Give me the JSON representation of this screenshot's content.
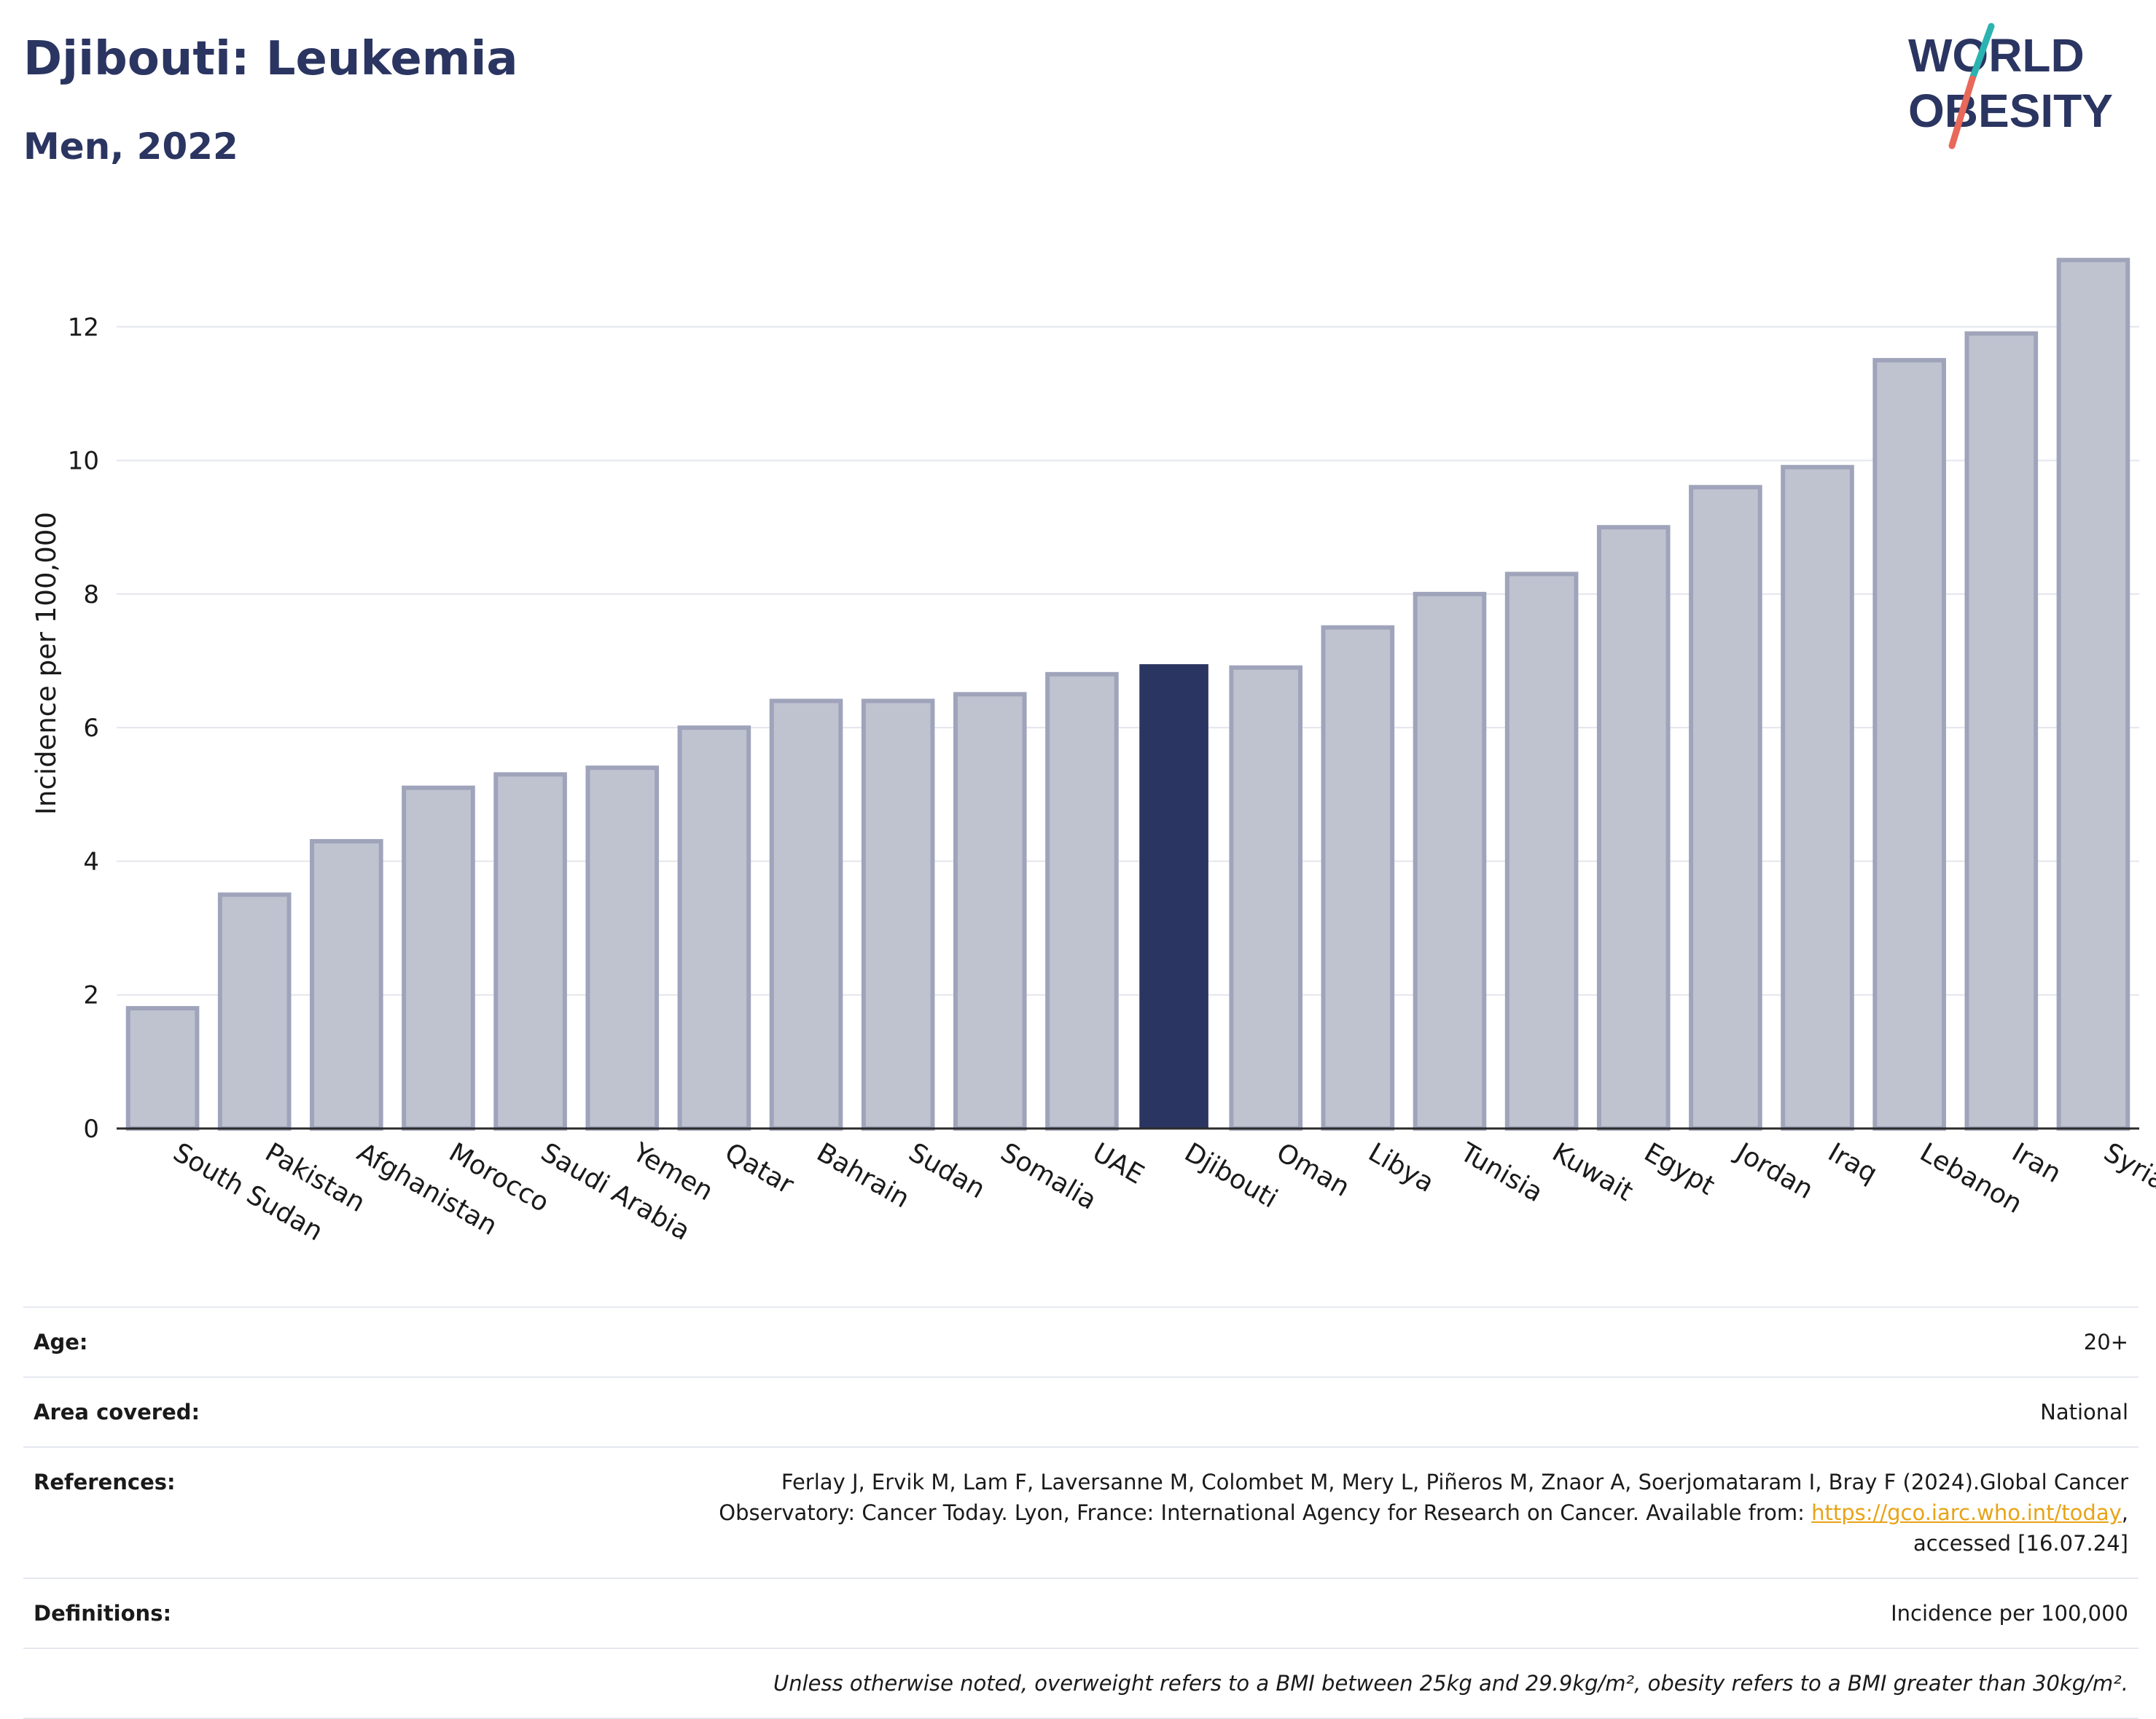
{
  "header": {
    "title": "Djibouti: Leukemia",
    "subtitle": "Men, 2022"
  },
  "logo": {
    "line1": "WORLD",
    "line2": "OBESITY",
    "colors": {
      "text": "#2b3561",
      "slash_top": "#2bb3b1",
      "slash_bottom": "#e8685a"
    }
  },
  "chart_data": {
    "type": "bar",
    "title": "Djibouti: Leukemia",
    "subtitle": "Men, 2022",
    "xlabel": "",
    "ylabel": "Incidence per 100,000",
    "ylim": [
      0,
      13.4
    ],
    "yticks": [
      0,
      2,
      4,
      6,
      8,
      10,
      12
    ],
    "grid": true,
    "highlight": "Djibouti",
    "colors": {
      "bar": "#bfc3d0",
      "bar_stroke": "#9fa4bb",
      "highlight": "#2b3561",
      "grid": "#e4e6ee",
      "axis": "#2b2b2b"
    },
    "categories": [
      "South Sudan",
      "Pakistan",
      "Afghanistan",
      "Morocco",
      "Saudi Arabia",
      "Yemen",
      "Qatar",
      "Bahrain",
      "Sudan",
      "Somalia",
      "UAE",
      "Djibouti",
      "Oman",
      "Libya",
      "Tunisia",
      "Kuwait",
      "Egypt",
      "Jordan",
      "Iraq",
      "Lebanon",
      "Iran",
      "Syria"
    ],
    "values": [
      1.8,
      3.5,
      4.3,
      5.1,
      5.3,
      5.4,
      6.0,
      6.4,
      6.4,
      6.5,
      6.8,
      6.95,
      6.9,
      7.5,
      8.0,
      8.3,
      9.0,
      9.6,
      9.9,
      11.5,
      11.9,
      13.0
    ]
  },
  "info": {
    "age_label": "Age:",
    "age_value": "20+",
    "area_label": "Area covered:",
    "area_value": "National",
    "references_label": "References:",
    "references_line1": "Ferlay J, Ervik M, Lam F, Laversanne M, Colombet M, Mery L, Piñeros M, Znaor A, Soerjomataram I, Bray F (2024).Global Cancer",
    "references_line2": "Observatory: Cancer Today. Lyon, France: International Agency for Research on Cancer. Available from: ",
    "references_link": "https://gco.iarc.who.int/today",
    "references_line2_end": ",",
    "references_line3": "accessed [16.07.24]",
    "definitions_label": "Definitions:",
    "definitions_value": "Incidence per 100,000",
    "note": "Unless otherwise noted, overweight refers to a BMI between 25kg and 29.9kg/m², obesity refers to a BMI greater than 30kg/m²."
  }
}
